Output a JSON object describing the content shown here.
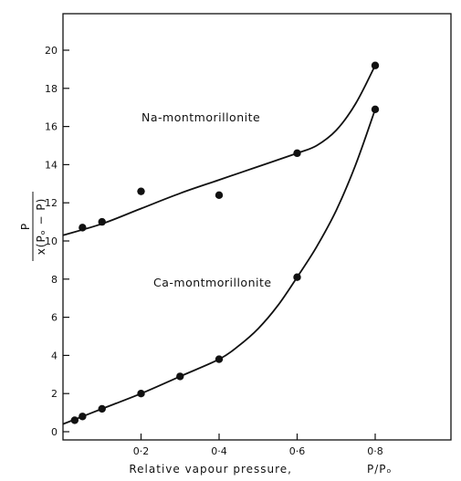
{
  "chart_data": {
    "type": "scatter",
    "title": "",
    "xlabel": "Relative vapour pressure,",
    "xlabel_symbol": "P/Pₒ",
    "ylabel_numerator": "P",
    "ylabel_denominator": "x(Pₒ − P)",
    "xlim": [
      0,
      0.9
    ],
    "ylim": [
      0,
      21
    ],
    "x_ticks": [
      0.2,
      0.4,
      0.6,
      0.8
    ],
    "x_tick_labels": [
      "0·2",
      "0·4",
      "0·6",
      "0·8"
    ],
    "y_ticks": [
      0,
      2,
      4,
      6,
      8,
      10,
      12,
      14,
      16,
      18,
      20
    ],
    "y_tick_labels": [
      "0",
      "2",
      "4",
      "6",
      "8",
      "10",
      "12",
      "14",
      "16",
      "18",
      "20"
    ],
    "grid": false,
    "series": [
      {
        "name": "Na-montmorillonite",
        "points": [
          [
            0.05,
            10.7
          ],
          [
            0.1,
            11.0
          ],
          [
            0.2,
            12.6
          ],
          [
            0.4,
            12.4
          ],
          [
            0.6,
            14.6
          ],
          [
            0.8,
            19.2
          ]
        ],
        "curve": [
          [
            0.0,
            10.3
          ],
          [
            0.1,
            10.9
          ],
          [
            0.2,
            11.7
          ],
          [
            0.3,
            12.5
          ],
          [
            0.4,
            13.2
          ],
          [
            0.5,
            13.9
          ],
          [
            0.6,
            14.6
          ],
          [
            0.65,
            15.0
          ],
          [
            0.7,
            15.8
          ],
          [
            0.75,
            17.2
          ],
          [
            0.8,
            19.2
          ]
        ]
      },
      {
        "name": "Ca-montmorillonite",
        "points": [
          [
            0.03,
            0.6
          ],
          [
            0.05,
            0.8
          ],
          [
            0.1,
            1.2
          ],
          [
            0.2,
            2.0
          ],
          [
            0.3,
            2.9
          ],
          [
            0.4,
            3.8
          ],
          [
            0.6,
            8.1
          ],
          [
            0.8,
            16.9
          ]
        ],
        "curve": [
          [
            0.0,
            0.4
          ],
          [
            0.05,
            0.8
          ],
          [
            0.1,
            1.2
          ],
          [
            0.2,
            2.0
          ],
          [
            0.3,
            2.9
          ],
          [
            0.4,
            3.8
          ],
          [
            0.45,
            4.5
          ],
          [
            0.5,
            5.4
          ],
          [
            0.55,
            6.6
          ],
          [
            0.6,
            8.1
          ],
          [
            0.65,
            9.7
          ],
          [
            0.7,
            11.6
          ],
          [
            0.75,
            14.0
          ],
          [
            0.8,
            16.9
          ]
        ]
      }
    ]
  }
}
